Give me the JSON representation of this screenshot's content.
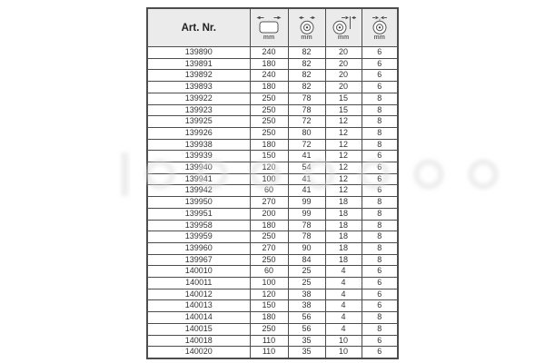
{
  "colors": {
    "border": "#4d4d4d",
    "header_bg": "#ebebeb",
    "text": "#333333",
    "unit_text": "#666666",
    "icon_stroke": "#555555",
    "watermark": "#dcdcdc"
  },
  "table": {
    "header": {
      "art_nr_label": "Art. Nr.",
      "icon_columns": [
        {
          "icon": "roller-length-icon",
          "unit": "mm"
        },
        {
          "icon": "roller-outer-diameter-icon",
          "unit": "mm"
        },
        {
          "icon": "roller-hub-diameter-icon",
          "unit": "mm"
        },
        {
          "icon": "roller-bore-diameter-icon",
          "unit": "mm"
        }
      ]
    },
    "column_keys": [
      "cell-art-nr",
      "cell-length-mm",
      "cell-outer-diameter-mm",
      "cell-hub-diameter-mm",
      "cell-bore-diameter-mm"
    ],
    "rows": [
      [
        "139890",
        "240",
        "82",
        "20",
        "6"
      ],
      [
        "139891",
        "180",
        "82",
        "20",
        "6"
      ],
      [
        "139892",
        "240",
        "82",
        "20",
        "6"
      ],
      [
        "139893",
        "180",
        "82",
        "20",
        "6"
      ],
      [
        "139922",
        "250",
        "78",
        "15",
        "8"
      ],
      [
        "139923",
        "250",
        "78",
        "15",
        "8"
      ],
      [
        "139925",
        "250",
        "72",
        "12",
        "8"
      ],
      [
        "139926",
        "250",
        "80",
        "12",
        "8"
      ],
      [
        "139938",
        "180",
        "72",
        "12",
        "8"
      ],
      [
        "139939",
        "150",
        "41",
        "12",
        "6"
      ],
      [
        "139940",
        "120",
        "54",
        "12",
        "6"
      ],
      [
        "139941",
        "100",
        "41",
        "12",
        "6"
      ],
      [
        "139942",
        "60",
        "41",
        "12",
        "6"
      ],
      [
        "139950",
        "270",
        "99",
        "18",
        "8"
      ],
      [
        "139951",
        "200",
        "99",
        "18",
        "8"
      ],
      [
        "139958",
        "180",
        "78",
        "18",
        "8"
      ],
      [
        "139959",
        "250",
        "78",
        "18",
        "8"
      ],
      [
        "139960",
        "270",
        "90",
        "18",
        "8"
      ],
      [
        "139967",
        "250",
        "84",
        "18",
        "8"
      ],
      [
        "140010",
        "60",
        "25",
        "4",
        "6"
      ],
      [
        "140011",
        "100",
        "25",
        "4",
        "6"
      ],
      [
        "140012",
        "120",
        "38",
        "4",
        "6"
      ],
      [
        "140013",
        "150",
        "38",
        "4",
        "6"
      ],
      [
        "140014",
        "180",
        "56",
        "4",
        "8"
      ],
      [
        "140015",
        "250",
        "56",
        "4",
        "8"
      ],
      [
        "140018",
        "110",
        "35",
        "10",
        "6"
      ],
      [
        "140020",
        "110",
        "35",
        "10",
        "6"
      ]
    ]
  }
}
